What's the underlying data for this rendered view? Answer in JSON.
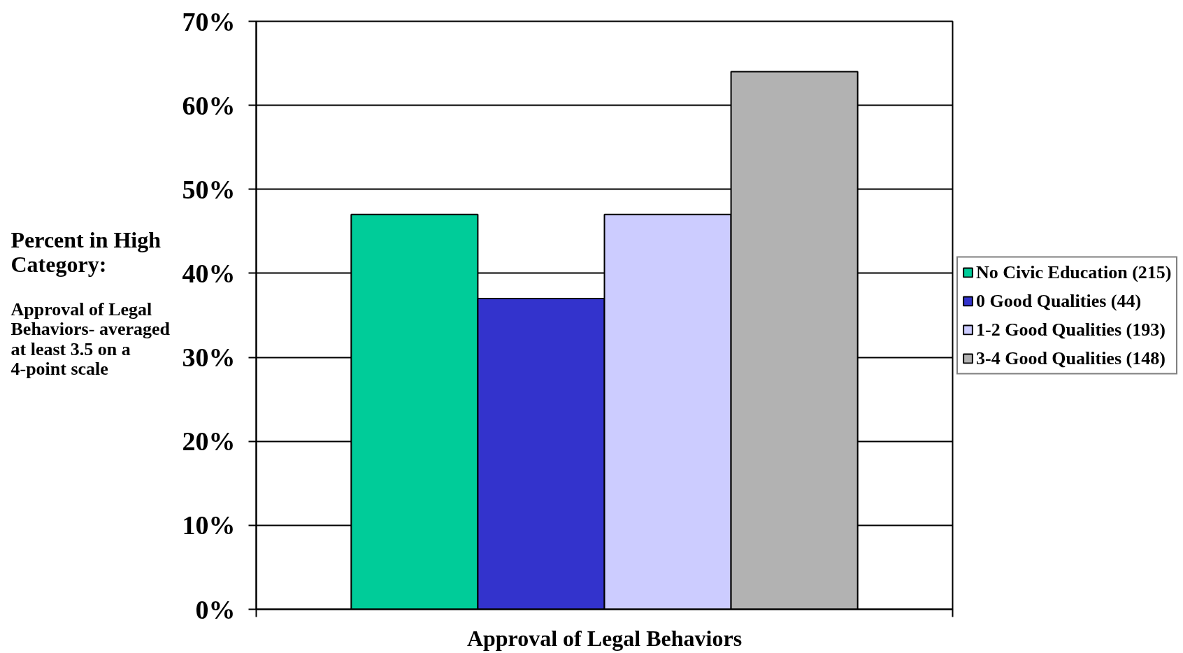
{
  "chart_data": {
    "type": "bar",
    "categories": [
      null
    ],
    "xlabel": "Approval of Legal Behaviors",
    "series": [
      {
        "name": "No Civic Education (215)",
        "color": "#00cc99",
        "values": [
          47
        ]
      },
      {
        "name": "0 Good Qualities (44)",
        "color": "#3333cc",
        "values": [
          37
        ]
      },
      {
        "name": "1-2 Good Qualities (193)",
        "color": "#ccccff",
        "values": [
          47
        ]
      },
      {
        "name": "3-4 Good Qualities (148)",
        "color": "#b2b2b2",
        "values": [
          64
        ]
      }
    ],
    "ylabel": "Percent in High Category:",
    "annotations": [
      "Approval of Legal Behaviors- averaged at least 3.5 on a 4-point scale"
    ],
    "ylim": [
      0,
      70
    ],
    "yticks": [
      {
        "value": 0,
        "label": "0%"
      },
      {
        "value": 10,
        "label": "10%"
      },
      {
        "value": 20,
        "label": "20%"
      },
      {
        "value": 30,
        "label": "30%"
      },
      {
        "value": 40,
        "label": "40%"
      },
      {
        "value": 50,
        "label": "50%"
      },
      {
        "value": 60,
        "label": "60%"
      },
      {
        "value": 70,
        "label": "70%"
      }
    ],
    "grid": "y",
    "legend": "right"
  }
}
